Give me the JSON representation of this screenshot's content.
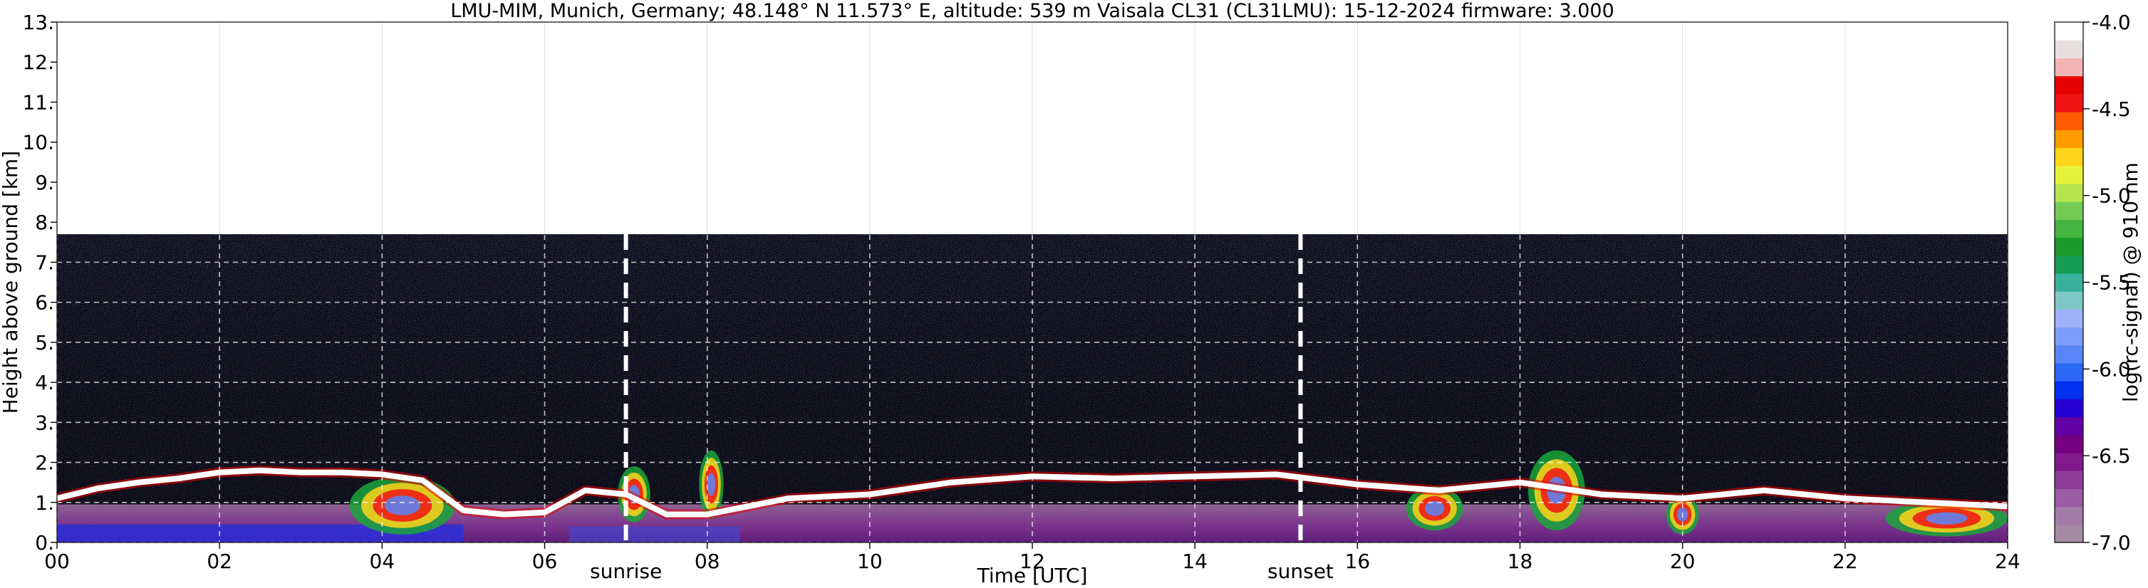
{
  "chart_data": {
    "type": "heatmap",
    "title": "LMU-MIM, Munich, Germany; 48.148° N 11.573° E, altitude: 539 m    Vaisala CL31 (CL31LMU): 15-12-2024    firmware: 3.000",
    "xlabel": "Time [UTC]",
    "ylabel": "Height above ground [km]",
    "xlim": [
      0,
      24
    ],
    "ylim": [
      0,
      13
    ],
    "x_ticks": [
      "00",
      "02",
      "04",
      "06",
      "08",
      "10",
      "12",
      "14",
      "16",
      "18",
      "20",
      "22",
      "24"
    ],
    "x_tick_values": [
      0,
      2,
      4,
      6,
      8,
      10,
      12,
      14,
      16,
      18,
      20,
      22,
      24
    ],
    "y_ticks": [
      "0.",
      "1.",
      "2.",
      "3.",
      "4.",
      "5.",
      "6.",
      "7.",
      "8.",
      "9.",
      "10.",
      "11.",
      "12.",
      "13."
    ],
    "y_tick_values": [
      0,
      1,
      2,
      3,
      4,
      5,
      6,
      7,
      8,
      9,
      10,
      11,
      12,
      13
    ],
    "grid": true,
    "max_range_km": 7.7,
    "markers": [
      {
        "label": "sunrise",
        "time": 7.0
      },
      {
        "label": "sunset",
        "time": 15.3
      }
    ],
    "colorbar": {
      "label": "log(rc-signal) @ 910 nm",
      "range": [
        -7.0,
        -4.0
      ],
      "ticks": [
        "-4.0",
        "-4.5",
        "-5.0",
        "-5.5",
        "-6.0",
        "-6.5",
        "-7.0"
      ],
      "tick_values": [
        -4.0,
        -4.5,
        -5.0,
        -5.5,
        -6.0,
        -6.5,
        -7.0
      ],
      "colors_bottom_to_top": [
        "#a58aa6",
        "#a27aa8",
        "#9a5ca2",
        "#8e3d98",
        "#82198c",
        "#75007f",
        "#6200a6",
        "#2600d2",
        "#0030f0",
        "#2a68f5",
        "#5886f8",
        "#7b9cfa",
        "#9cb2fb",
        "#7fc7c6",
        "#38b09b",
        "#149b54",
        "#1a9a2b",
        "#45b441",
        "#74cc55",
        "#b4e34e",
        "#e6f23a",
        "#ffd41a",
        "#ff9d00",
        "#ff5a00",
        "#f01414",
        "#e60000",
        "#f2b4b4",
        "#e8dfdf",
        "#ffffff"
      ]
    },
    "cloud_base_layer": [
      {
        "t": 0.0,
        "h": 1.1
      },
      {
        "t": 0.5,
        "h": 1.35
      },
      {
        "t": 1.0,
        "h": 1.5
      },
      {
        "t": 1.5,
        "h": 1.6
      },
      {
        "t": 2.0,
        "h": 1.75
      },
      {
        "t": 2.5,
        "h": 1.8
      },
      {
        "t": 3.0,
        "h": 1.75
      },
      {
        "t": 3.5,
        "h": 1.75
      },
      {
        "t": 4.0,
        "h": 1.7
      },
      {
        "t": 4.5,
        "h": 1.55
      },
      {
        "t": 5.0,
        "h": 0.8
      },
      {
        "t": 5.5,
        "h": 0.7
      },
      {
        "t": 6.0,
        "h": 0.75
      },
      {
        "t": 6.5,
        "h": 1.3
      },
      {
        "t": 7.0,
        "h": 1.2
      },
      {
        "t": 7.5,
        "h": 0.7
      },
      {
        "t": 8.0,
        "h": 0.7
      },
      {
        "t": 9.0,
        "h": 1.1
      },
      {
        "t": 10.0,
        "h": 1.2
      },
      {
        "t": 11.0,
        "h": 1.5
      },
      {
        "t": 12.0,
        "h": 1.65
      },
      {
        "t": 13.0,
        "h": 1.6
      },
      {
        "t": 14.0,
        "h": 1.65
      },
      {
        "t": 15.0,
        "h": 1.7
      },
      {
        "t": 16.0,
        "h": 1.45
      },
      {
        "t": 17.0,
        "h": 1.3
      },
      {
        "t": 18.0,
        "h": 1.5
      },
      {
        "t": 19.0,
        "h": 1.2
      },
      {
        "t": 20.0,
        "h": 1.1
      },
      {
        "t": 21.0,
        "h": 1.3
      },
      {
        "t": 22.0,
        "h": 1.1
      },
      {
        "t": 23.0,
        "h": 1.0
      },
      {
        "t": 24.0,
        "h": 0.9
      }
    ]
  }
}
